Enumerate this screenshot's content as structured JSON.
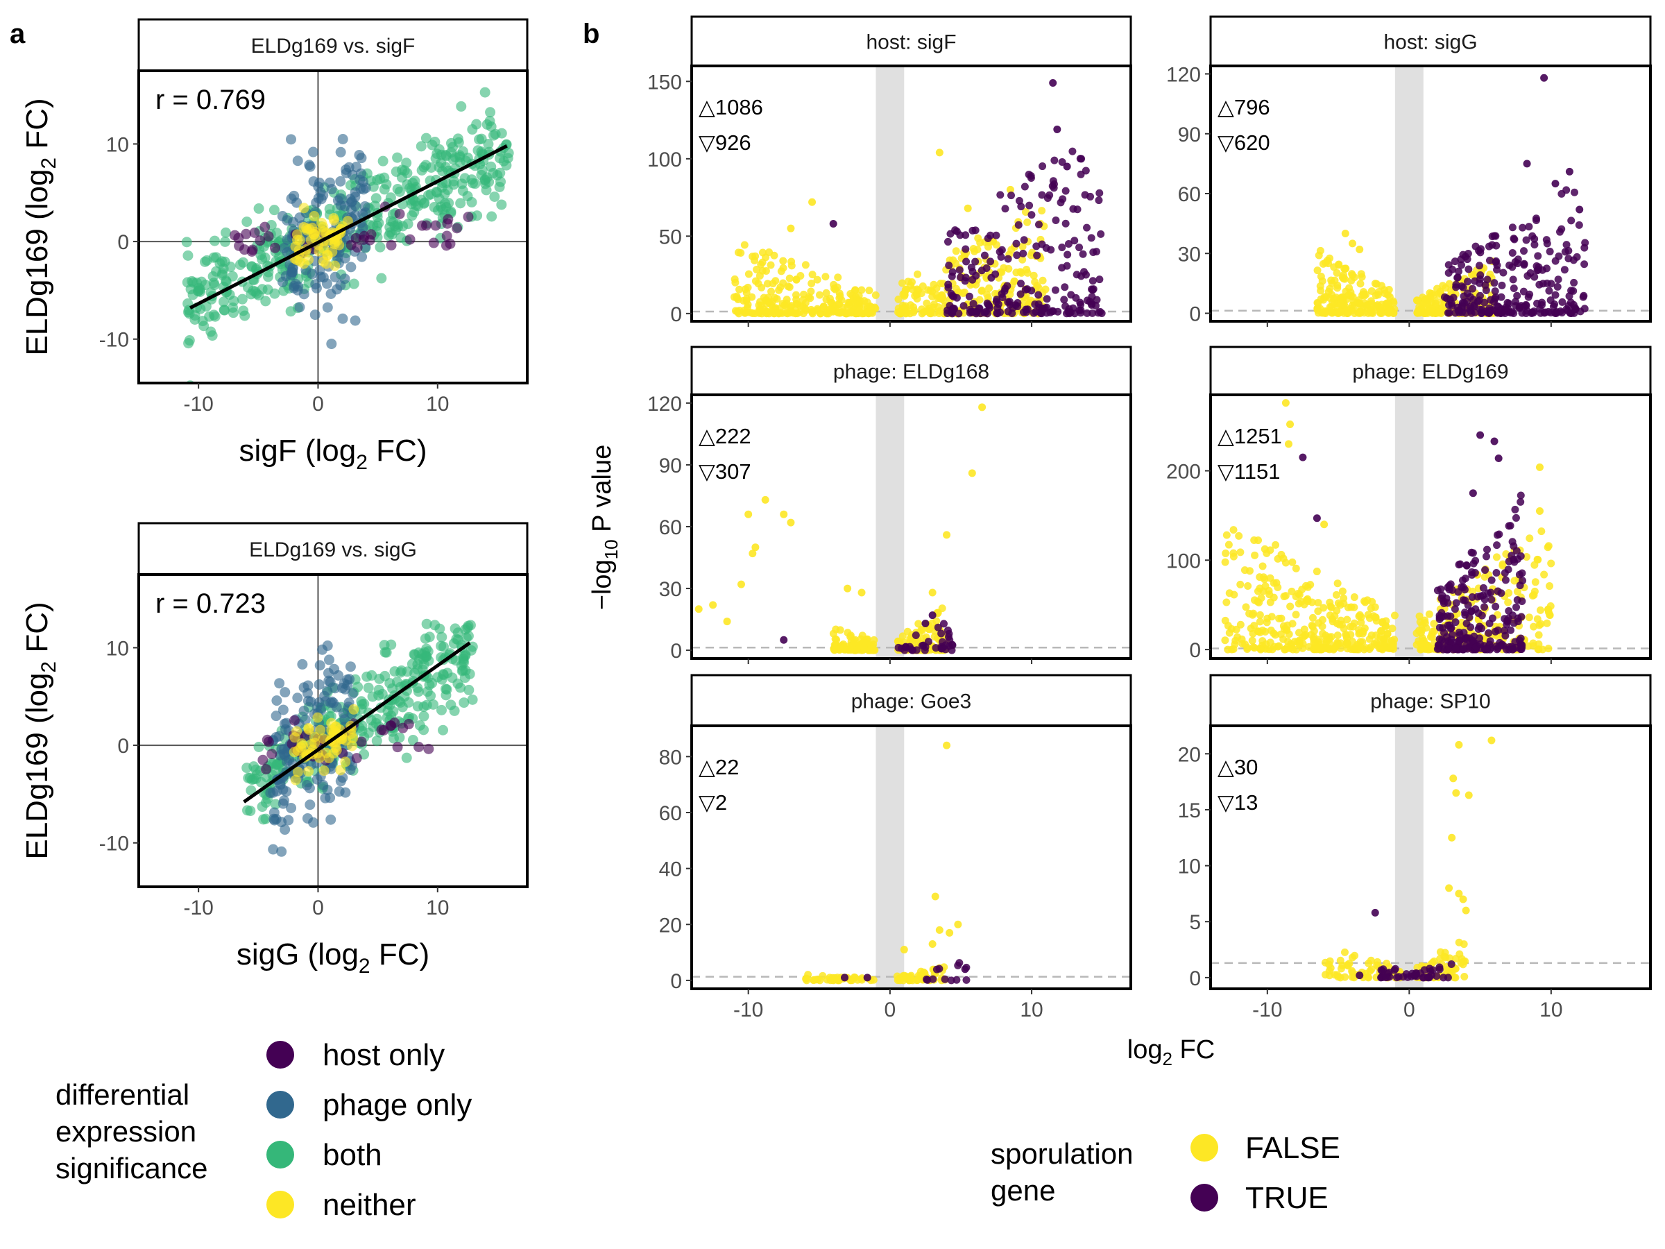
{
  "figure": {
    "panel_letters": [
      "a",
      "b"
    ],
    "legend_a": {
      "title_lines": [
        "differential",
        "expression",
        "significance"
      ],
      "items": [
        {
          "label": "host only",
          "color": "#440154"
        },
        {
          "label": "phage only",
          "color": "#31688e"
        },
        {
          "label": "both",
          "color": "#35b779"
        },
        {
          "label": "neither",
          "color": "#fde725"
        }
      ]
    },
    "legend_b": {
      "title_lines": [
        "sporulation",
        "gene"
      ],
      "items": [
        {
          "label": "FALSE",
          "color": "#fde725"
        },
        {
          "label": "TRUE",
          "color": "#440154"
        }
      ]
    },
    "volcano_ylabel": "−log",
    "volcano_ylabel_sub": "10",
    "volcano_ylabel_suffix": " P value",
    "volcano_xlabel": "log",
    "volcano_xlabel_sub": "2",
    "volcano_xlabel_suffix": " FC"
  },
  "chart_data": [
    {
      "type": "scatter",
      "panel": "a",
      "strip": "ELDg169 vs. sigF",
      "annotation": "r = 0.769",
      "xlabel": "sigF (log2 FC)",
      "xlabel_parts": [
        "sigF (log",
        "2",
        " FC)"
      ],
      "ylabel_parts": [
        "ELDg169 (log",
        "2",
        " FC)"
      ],
      "xlim": [
        -15,
        17.5
      ],
      "ylim": [
        -14.5,
        17.5
      ],
      "xticks": [
        -10,
        0,
        10
      ],
      "yticks": [
        -10,
        0,
        10
      ],
      "fit_line": {
        "x": [
          -10.7,
          15.8
        ],
        "y": [
          -6.8,
          9.8
        ]
      },
      "reference_lines": {
        "x": 0,
        "y": 0
      },
      "series": [
        {
          "name": "both",
          "color": "#35b779",
          "cloud": {
            "x_range": [
              -11,
              16
            ],
            "slope": 0.6,
            "spread": 2.4,
            "n": 420
          }
        },
        {
          "name": "phage only",
          "color": "#31688e",
          "cloud": {
            "x_range": [
              -3,
              4
            ],
            "slope": 0.8,
            "spread": 4.0,
            "n": 160
          }
        },
        {
          "name": "host only",
          "color": "#440154",
          "cloud": {
            "x_range": [
              -7,
              13
            ],
            "slope": 0.1,
            "spread": 1.0,
            "n": 40
          }
        },
        {
          "name": "neither",
          "color": "#fde725",
          "cloud": {
            "x_range": [
              -2,
              2.5
            ],
            "slope": 0.3,
            "spread": 1.2,
            "n": 60
          }
        }
      ]
    },
    {
      "type": "scatter",
      "panel": "a",
      "strip": "ELDg169 vs. sigG",
      "annotation": "r = 0.723",
      "xlabel": "sigG (log2 FC)",
      "xlabel_parts": [
        "sigG (log",
        "2",
        " FC)"
      ],
      "ylabel_parts": [
        "ELDg169 (log",
        "2",
        " FC)"
      ],
      "xlim": [
        -15,
        17.5
      ],
      "ylim": [
        -14.5,
        17.5
      ],
      "xticks": [
        -10,
        0,
        10
      ],
      "yticks": [
        -10,
        0,
        10
      ],
      "fit_line": {
        "x": [
          -6.2,
          12.7
        ],
        "y": [
          -5.8,
          10.5
        ]
      },
      "reference_lines": {
        "x": 0,
        "y": 0
      },
      "series": [
        {
          "name": "both",
          "color": "#35b779",
          "cloud": {
            "x_range": [
              -6,
              13
            ],
            "slope": 0.75,
            "spread": 2.4,
            "n": 320
          }
        },
        {
          "name": "phage only",
          "color": "#31688e",
          "cloud": {
            "x_range": [
              -4,
              3
            ],
            "slope": 0.8,
            "spread": 4.2,
            "n": 170
          }
        },
        {
          "name": "host only",
          "color": "#440154",
          "cloud": {
            "x_range": [
              -5,
              10
            ],
            "slope": 0.1,
            "spread": 1.0,
            "n": 35
          }
        },
        {
          "name": "neither",
          "color": "#fde725",
          "cloud": {
            "x_range": [
              -2,
              3
            ],
            "slope": 0.3,
            "spread": 1.3,
            "n": 60
          }
        }
      ]
    },
    {
      "type": "scatter",
      "panel": "b",
      "subtype": "volcano",
      "strip": "host: sigF",
      "up_count": "△1086",
      "down_count": "▽926",
      "xlim": [
        -14,
        17
      ],
      "ylim": [
        -5,
        160
      ],
      "yticks": [
        0,
        50,
        100,
        150
      ],
      "xticks": [
        -10,
        0,
        10
      ],
      "threshold_y": 1.3,
      "series": [
        {
          "name": "FALSE",
          "color": "#fde725",
          "left": {
            "x_range": [
              -11,
              -1
            ],
            "ymax": 40,
            "n": 240
          },
          "right": {
            "x_range": [
              0.5,
              11
            ],
            "ymax": 60,
            "n": 260
          },
          "outliers": [
            [
              -5.5,
              72
            ],
            [
              -7,
              55
            ],
            [
              3.5,
              104
            ],
            [
              5.5,
              68
            ],
            [
              8.5,
              80
            ]
          ]
        },
        {
          "name": "TRUE",
          "color": "#440154",
          "right": {
            "x_range": [
              4,
              15
            ],
            "ymax": 100,
            "n": 220
          },
          "outliers": [
            [
              11.5,
              149
            ],
            [
              11.8,
              119
            ],
            [
              13.5,
              100
            ],
            [
              -4,
              58
            ],
            [
              12.5,
              95
            ]
          ]
        }
      ]
    },
    {
      "type": "scatter",
      "panel": "b",
      "subtype": "volcano",
      "strip": "host: sigG",
      "up_count": "△796",
      "down_count": "▽620",
      "xlim": [
        -14,
        17
      ],
      "ylim": [
        -4,
        124
      ],
      "yticks": [
        0,
        30,
        60,
        90,
        120
      ],
      "xticks": [
        -10,
        0,
        10
      ],
      "threshold_y": 1.3,
      "series": [
        {
          "name": "FALSE",
          "color": "#fde725",
          "left": {
            "x_range": [
              -6.5,
              -1
            ],
            "ymax": 26,
            "n": 180
          },
          "right": {
            "x_range": [
              0.5,
              6
            ],
            "ymax": 22,
            "n": 160
          },
          "outliers": [
            [
              -4.5,
              40
            ],
            [
              -4,
              35
            ],
            [
              -3.5,
              32
            ]
          ]
        },
        {
          "name": "TRUE",
          "color": "#440154",
          "right": {
            "x_range": [
              2.5,
              12.5
            ],
            "ymax": 55,
            "n": 240
          },
          "outliers": [
            [
              9.5,
              118
            ],
            [
              8.3,
              75
            ],
            [
              11.3,
              71
            ],
            [
              10.3,
              65
            ],
            [
              12,
              52
            ]
          ]
        }
      ]
    },
    {
      "type": "scatter",
      "panel": "b",
      "subtype": "volcano",
      "strip": "phage: ELDg168",
      "up_count": "△222",
      "down_count": "▽307",
      "xlim": [
        -14,
        17
      ],
      "ylim": [
        -4,
        124
      ],
      "yticks": [
        0,
        30,
        60,
        90,
        120
      ],
      "xticks": [
        -10,
        0,
        10
      ],
      "threshold_y": 1.3,
      "series": [
        {
          "name": "FALSE",
          "color": "#fde725",
          "left": {
            "x_range": [
              -4,
              -1
            ],
            "ymax": 10,
            "n": 90
          },
          "right": {
            "x_range": [
              0.5,
              4
            ],
            "ymax": 18,
            "n": 110
          },
          "outliers": [
            [
              -10,
              66
            ],
            [
              -9.5,
              50
            ],
            [
              -9.7,
              47
            ],
            [
              -8.8,
              73
            ],
            [
              -7.5,
              66
            ],
            [
              -7,
              62
            ],
            [
              -12.5,
              22
            ],
            [
              -11.5,
              14
            ],
            [
              -13.5,
              20
            ],
            [
              -10.5,
              32
            ],
            [
              6.5,
              118
            ],
            [
              5.8,
              86
            ],
            [
              4,
              56
            ],
            [
              -3,
              30
            ],
            [
              -2,
              28
            ],
            [
              3,
              28
            ]
          ]
        },
        {
          "name": "TRUE",
          "color": "#440154",
          "right": {
            "x_range": [
              0.5,
              4.5
            ],
            "ymax": 12,
            "n": 35
          },
          "outliers": [
            [
              -7.5,
              5
            ],
            [
              3,
              17
            ],
            [
              2.5,
              13
            ]
          ]
        }
      ]
    },
    {
      "type": "scatter",
      "panel": "b",
      "subtype": "volcano",
      "strip": "phage: ELDg169",
      "up_count": "△1251",
      "down_count": "▽1151",
      "xlim": [
        -14,
        17
      ],
      "ylim": [
        -10,
        285
      ],
      "yticks": [
        0,
        100,
        200
      ],
      "xticks": [
        -10,
        0,
        10
      ],
      "threshold_y": 1.3,
      "series": [
        {
          "name": "FALSE",
          "color": "#fde725",
          "left": {
            "x_range": [
              -13,
              -1
            ],
            "ymax": 120,
            "n": 330
          },
          "right": {
            "x_range": [
              0.5,
              10
            ],
            "ymax": 120,
            "n": 230
          },
          "outliers": [
            [
              -8.7,
              276
            ],
            [
              -8.4,
              252
            ],
            [
              -8.5,
              230
            ],
            [
              9.2,
              204
            ],
            [
              9.2,
              155
            ],
            [
              -6,
              140
            ]
          ]
        },
        {
          "name": "TRUE",
          "color": "#440154",
          "right": {
            "x_range": [
              2,
              8
            ],
            "ymax": 140,
            "n": 230
          },
          "outliers": [
            [
              5,
              240
            ],
            [
              6,
              233
            ],
            [
              6.3,
              214
            ],
            [
              4.5,
              175
            ],
            [
              -6.5,
              147
            ],
            [
              -7.5,
              215
            ]
          ]
        }
      ]
    },
    {
      "type": "scatter",
      "panel": "b",
      "subtype": "volcano",
      "strip": "phage: Goe3",
      "up_count": "△22",
      "down_count": "▽2",
      "xlim": [
        -14,
        17
      ],
      "ylim": [
        -3,
        91
      ],
      "yticks": [
        0,
        20,
        40,
        60,
        80
      ],
      "xticks": [
        -10,
        0,
        10
      ],
      "threshold_y": 1.3,
      "series": [
        {
          "name": "FALSE",
          "color": "#fde725",
          "left": {
            "x_range": [
              -6,
              -1
            ],
            "ymax": 2,
            "n": 40
          },
          "right": {
            "x_range": [
              0.5,
              4
            ],
            "ymax": 4,
            "n": 45
          },
          "outliers": [
            [
              4,
              84
            ],
            [
              3.2,
              30
            ],
            [
              3.5,
              18
            ],
            [
              4.8,
              20
            ],
            [
              3,
              13
            ],
            [
              1,
              11
            ],
            [
              4.2,
              17
            ]
          ]
        },
        {
          "name": "TRUE",
          "color": "#440154",
          "right": {
            "x_range": [
              2,
              5.5
            ],
            "ymax": 6,
            "n": 12
          },
          "outliers": [
            [
              -3.2,
              1
            ],
            [
              -1.6,
              1
            ],
            [
              5.3,
              4
            ]
          ]
        }
      ]
    },
    {
      "type": "scatter",
      "panel": "b",
      "subtype": "volcano",
      "strip": "phage: SP10",
      "up_count": "△30",
      "down_count": "▽13",
      "xlim": [
        -14,
        17
      ],
      "ylim": [
        -1,
        22.5
      ],
      "yticks": [
        0,
        5,
        10,
        15,
        20
      ],
      "xticks": [
        -10,
        0,
        10
      ],
      "threshold_y": 1.3,
      "series": [
        {
          "name": "FALSE",
          "color": "#fde725",
          "left": {
            "x_range": [
              -6,
              -0.5
            ],
            "ymax": 2.5,
            "n": 60
          },
          "right": {
            "x_range": [
              0.5,
              4
            ],
            "ymax": 3,
            "n": 60
          },
          "outliers": [
            [
              5.8,
              21.2
            ],
            [
              3.5,
              20.8
            ],
            [
              3.1,
              17.8
            ],
            [
              3.3,
              16.5
            ],
            [
              4.2,
              16.3
            ],
            [
              3,
              12.5
            ],
            [
              2.8,
              8
            ],
            [
              3.5,
              7.5
            ],
            [
              4,
              6
            ],
            [
              3.8,
              7
            ]
          ]
        },
        {
          "name": "TRUE",
          "color": "#440154",
          "right": {
            "x_range": [
              -2,
              3
            ],
            "ymax": 1.5,
            "n": 45
          },
          "outliers": [
            [
              -2.4,
              5.8
            ],
            [
              -3.5,
              0.2
            ]
          ]
        }
      ]
    }
  ]
}
